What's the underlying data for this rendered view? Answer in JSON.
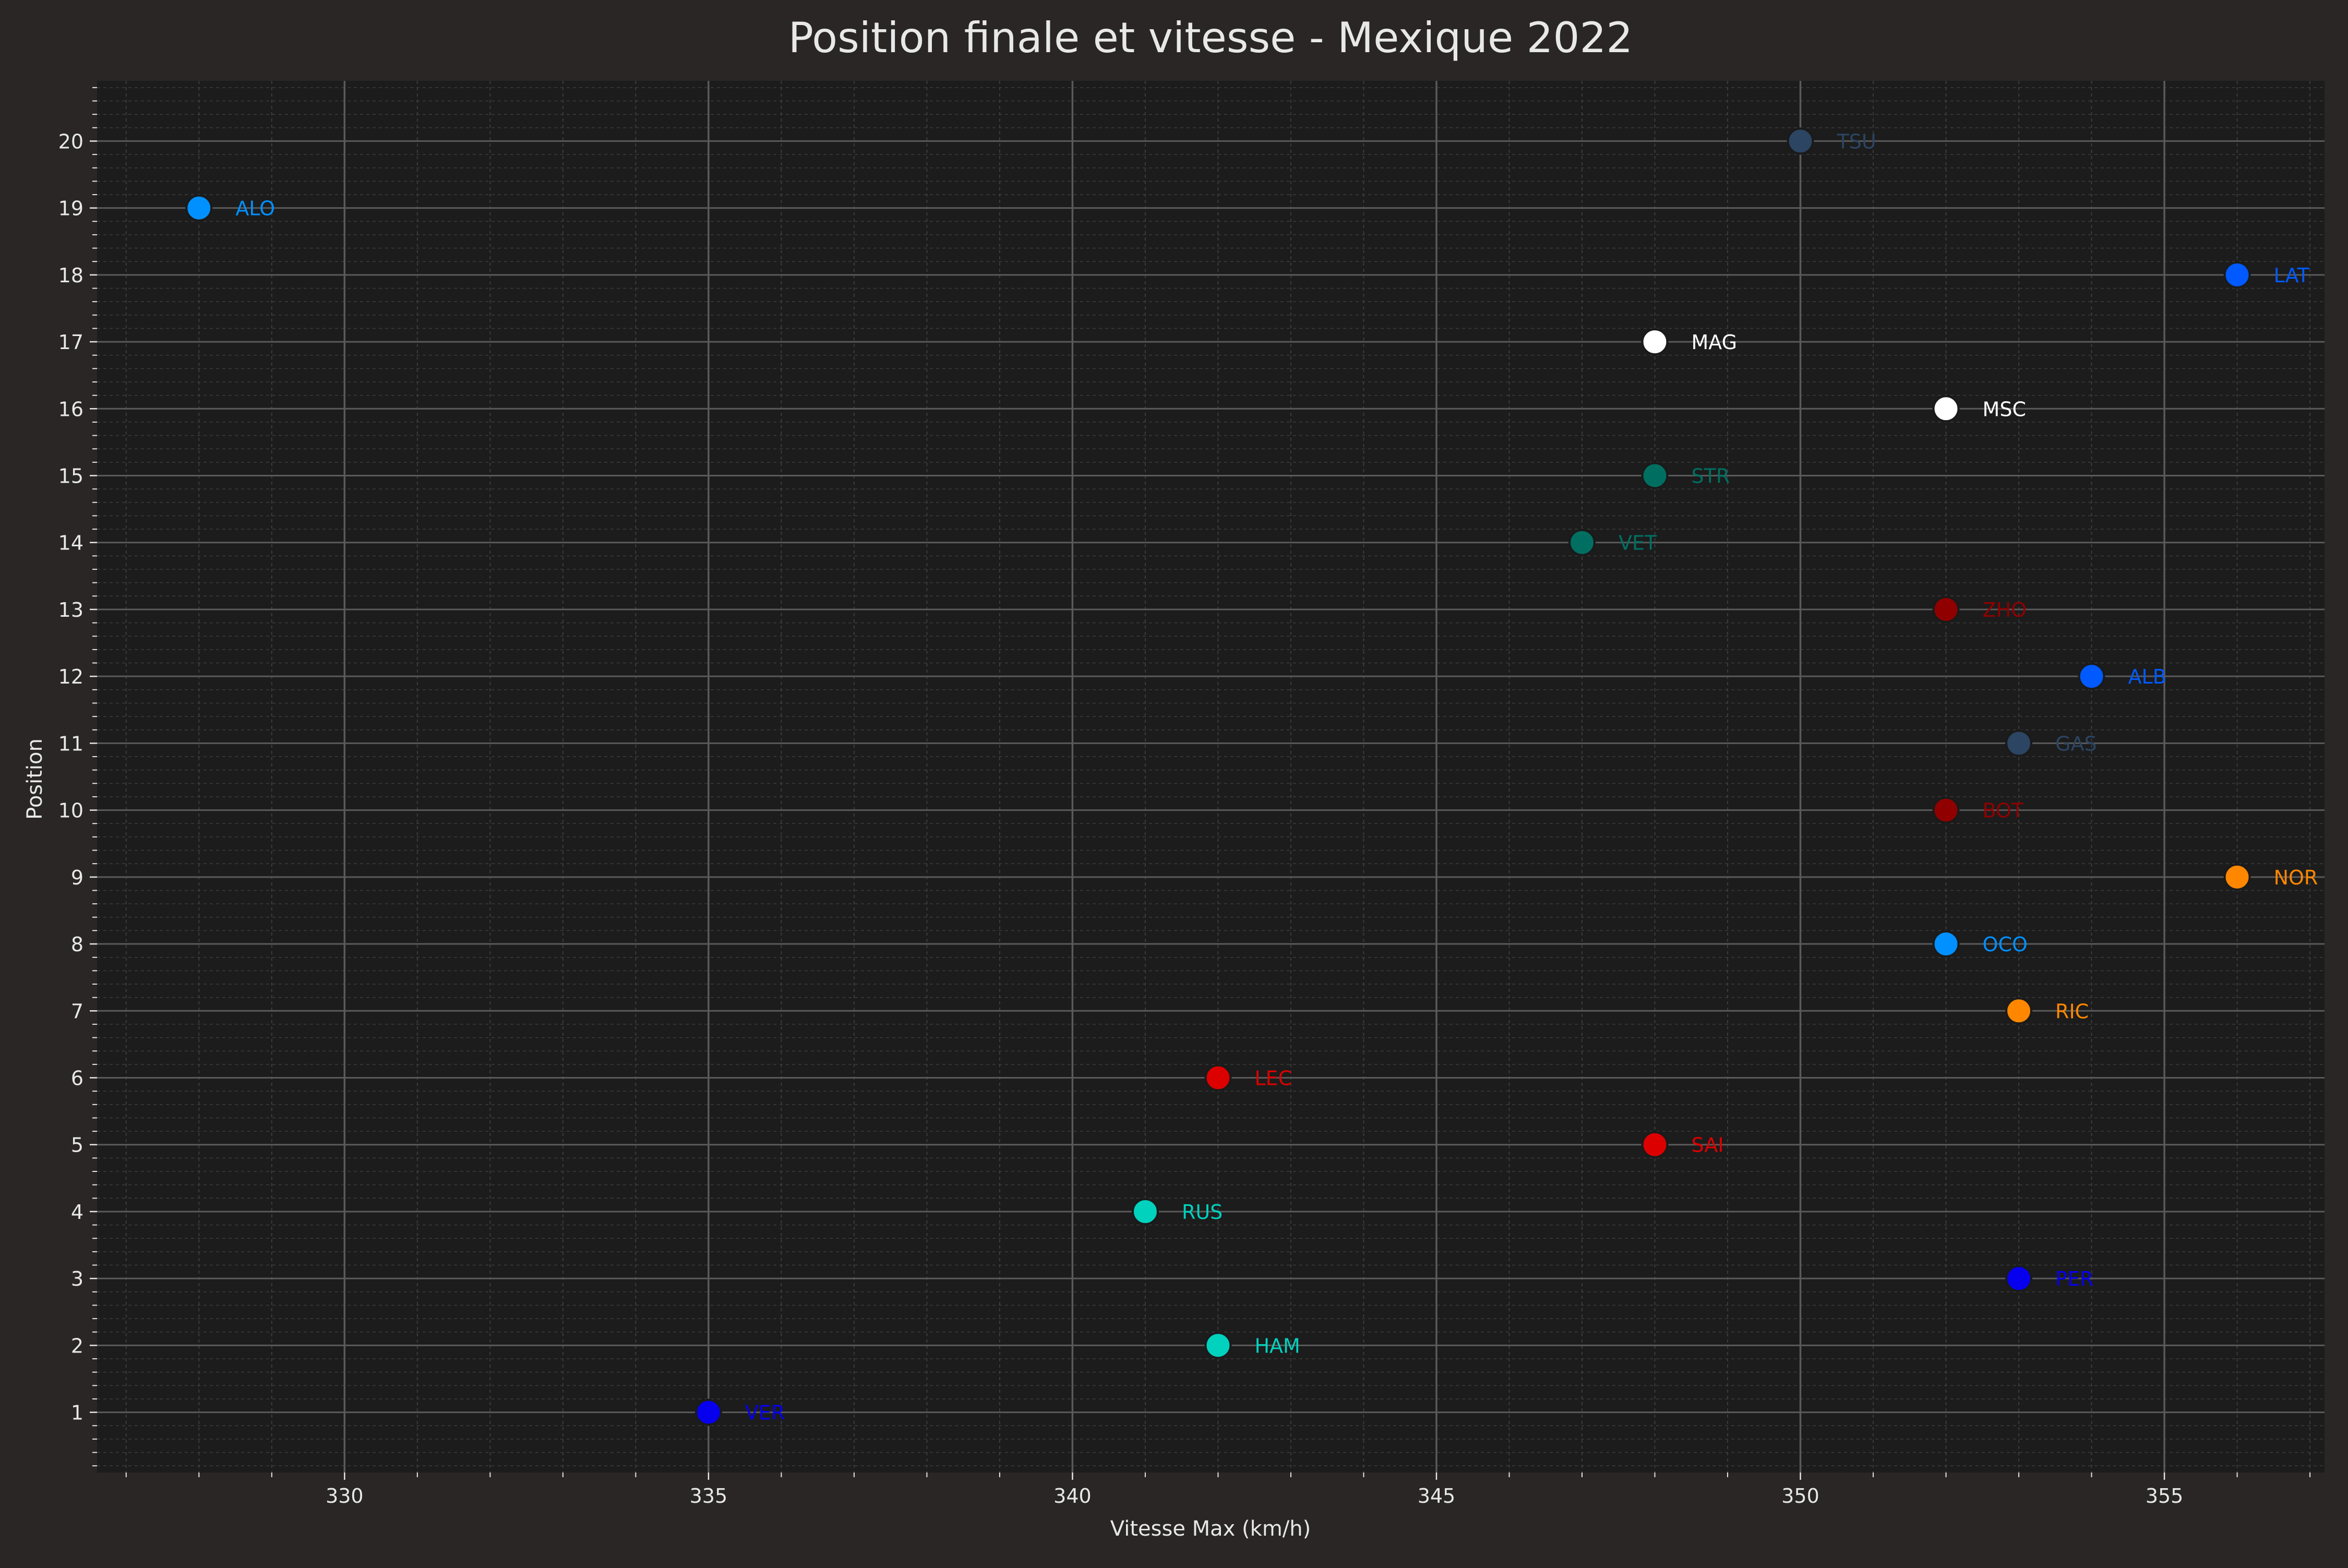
{
  "chart_data": {
    "type": "scatter",
    "title": "Position finale et vitesse - Mexique 2022",
    "xlabel": "Vitesse Max (km/h)",
    "ylabel": "Position",
    "xlim": [
      326.6,
      357.2
    ],
    "ylim": [
      0.1,
      20.9
    ],
    "xticks": [
      330,
      335,
      340,
      345,
      350,
      355
    ],
    "yticks": [
      1,
      2,
      3,
      4,
      5,
      6,
      7,
      8,
      9,
      10,
      11,
      12,
      13,
      14,
      15,
      16,
      17,
      18,
      19,
      20
    ],
    "grid": true,
    "legend": "none",
    "colors": {
      "figure_background": "#292625",
      "plot_background": "#1c1c1c",
      "text": "#e8e8e8",
      "grid_major": "#5a5a5a",
      "grid_minor": "#3c3c3c"
    },
    "points": [
      {
        "label": "VER",
        "x": 335,
        "y": 1,
        "color": "#0600ef"
      },
      {
        "label": "HAM",
        "x": 342,
        "y": 2,
        "color": "#00d2be"
      },
      {
        "label": "PER",
        "x": 353,
        "y": 3,
        "color": "#0600ef"
      },
      {
        "label": "RUS",
        "x": 341,
        "y": 4,
        "color": "#00d2be"
      },
      {
        "label": "SAI",
        "x": 348,
        "y": 5,
        "color": "#dc0000"
      },
      {
        "label": "LEC",
        "x": 342,
        "y": 6,
        "color": "#dc0000"
      },
      {
        "label": "RIC",
        "x": 353,
        "y": 7,
        "color": "#ff8700"
      },
      {
        "label": "OCO",
        "x": 352,
        "y": 8,
        "color": "#0090ff"
      },
      {
        "label": "NOR",
        "x": 356,
        "y": 9,
        "color": "#ff8700"
      },
      {
        "label": "BOT",
        "x": 352,
        "y": 10,
        "color": "#900000"
      },
      {
        "label": "GAS",
        "x": 353,
        "y": 11,
        "color": "#2b4562"
      },
      {
        "label": "ALB",
        "x": 354,
        "y": 12,
        "color": "#005aff"
      },
      {
        "label": "ZHO",
        "x": 352,
        "y": 13,
        "color": "#900000"
      },
      {
        "label": "VET",
        "x": 347,
        "y": 14,
        "color": "#006f62"
      },
      {
        "label": "STR",
        "x": 348,
        "y": 15,
        "color": "#006f62"
      },
      {
        "label": "MSC",
        "x": 352,
        "y": 16,
        "color": "#ffffff"
      },
      {
        "label": "MAG",
        "x": 348,
        "y": 17,
        "color": "#ffffff"
      },
      {
        "label": "LAT",
        "x": 356,
        "y": 18,
        "color": "#005aff"
      },
      {
        "label": "ALO",
        "x": 328,
        "y": 19,
        "color": "#0090ff"
      },
      {
        "label": "TSU",
        "x": 350,
        "y": 20,
        "color": "#2b4562"
      }
    ]
  }
}
